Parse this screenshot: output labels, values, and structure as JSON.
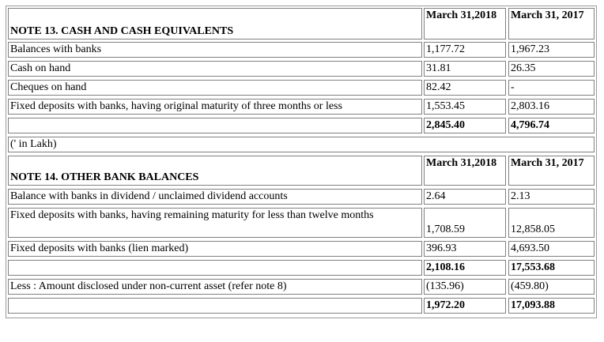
{
  "note13": {
    "title": "NOTE 13. CASH AND CASH EQUIVALENTS",
    "col1": "March 31,2018",
    "col2": "March 31, 2017",
    "rows": [
      {
        "label": "Balances with banks",
        "v1": "1,177.72",
        "v2": "1,967.23"
      },
      {
        "label": "Cash on hand",
        "v1": "31.81",
        "v2": "26.35"
      },
      {
        "label": "Cheques on hand",
        "v1": "82.42",
        "v2": "-"
      },
      {
        "label": "Fixed deposits with banks, having original maturity of three months or less",
        "v1": "1,553.45",
        "v2": "2,803.16"
      }
    ],
    "total": {
      "v1": "2,845.40",
      "v2": "4,796.74"
    }
  },
  "unit_note": "(' in Lakh)",
  "note14": {
    "title": "NOTE 14. OTHER BANK BALANCES",
    "col1": "March 31,2018",
    "col2": "March 31, 2017",
    "rows": [
      {
        "label": "Balance with banks in dividend / unclaimed dividend accounts",
        "v1": "2.64",
        "v2": "2.13"
      },
      {
        "label": "Fixed deposits with banks, having remaining maturity for less than twelve months",
        "v1": "1,708.59",
        "v2": "12,858.05"
      },
      {
        "label": "Fixed deposits with banks (lien marked)",
        "v1": "396.93",
        "v2": "4,693.50"
      }
    ],
    "subtotal": {
      "v1": "2,108.16",
      "v2": "17,553.68"
    },
    "less": {
      "label": "Less : Amount disclosed under non-current asset (refer note 8)",
      "v1": "(135.96)",
      "v2": "(459.80)"
    },
    "total": {
      "v1": "1,972.20",
      "v2": "17,093.88"
    }
  }
}
